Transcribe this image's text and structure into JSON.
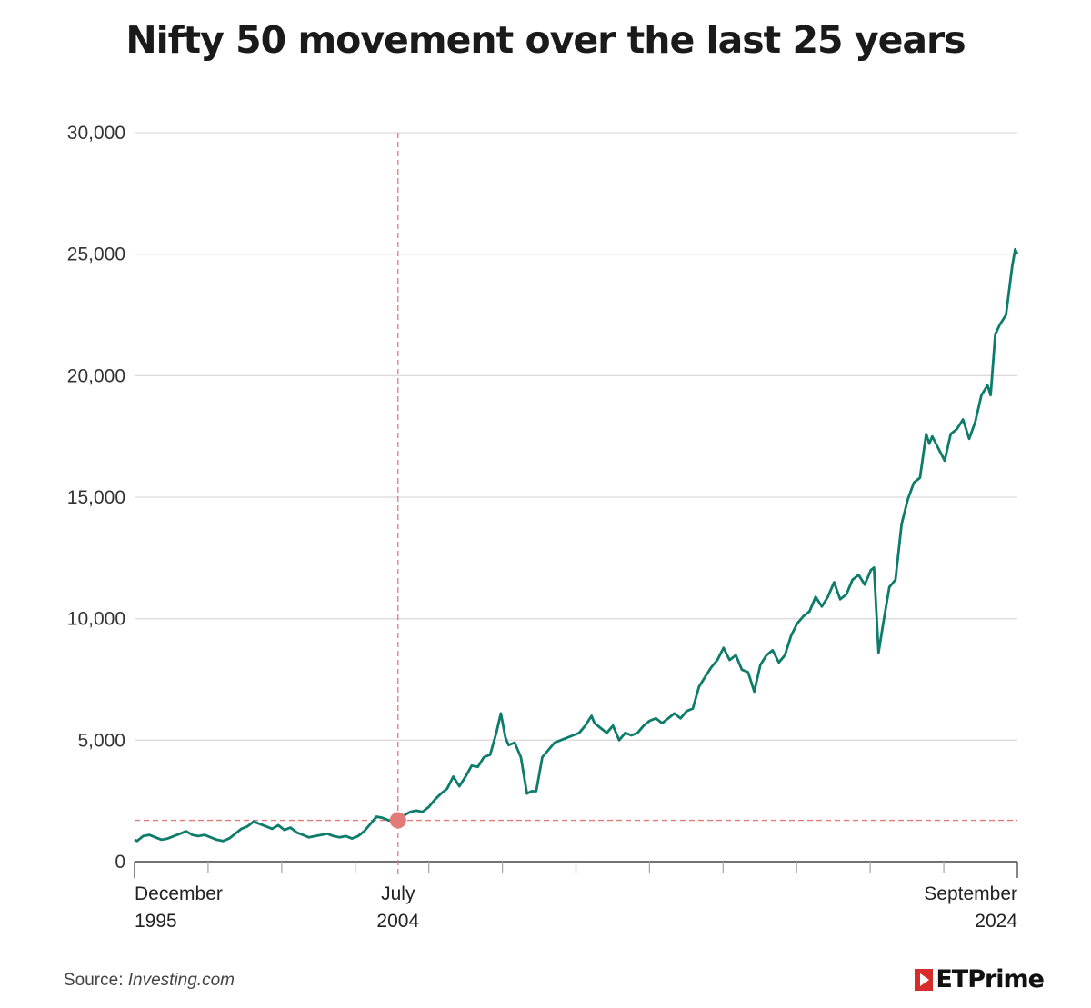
{
  "chart_data": {
    "type": "line",
    "title": "Nifty 50 movement over the last 25 years",
    "xlabel": "",
    "ylabel": "",
    "y_ticks": [
      "0",
      "5,000",
      "10,000",
      "15,000",
      "20,000",
      "25,000",
      "30,000"
    ],
    "ylim": [
      0,
      30000
    ],
    "xlim": [
      1995.92,
      2024.67
    ],
    "x_tick_labels": [
      {
        "x": 1995.92,
        "line1": "December",
        "line2": "1995"
      },
      {
        "x": 2004.5,
        "line1": "July",
        "line2": "2004"
      },
      {
        "x": 2024.67,
        "line1": "September",
        "line2": "2024"
      }
    ],
    "grid": true,
    "line_color": "#0e7c6b",
    "annotation_color": "#e27a77",
    "marker": {
      "x": 2004.5,
      "y": 1700
    },
    "series": [
      {
        "x": [
          1995.92,
          1996.0,
          1996.2,
          1996.4,
          1996.6,
          1996.8,
          1997.0,
          1997.2,
          1997.4,
          1997.6,
          1997.8,
          1998.0,
          1998.2,
          1998.4,
          1998.6,
          1998.8,
          1999.0,
          1999.2,
          1999.4,
          1999.6,
          1999.8,
          2000.0,
          2000.2,
          2000.4,
          2000.6,
          2000.8,
          2001.0,
          2001.2,
          2001.4,
          2001.6,
          2001.8,
          2002.0,
          2002.2,
          2002.4,
          2002.6,
          2002.8,
          2003.0,
          2003.2,
          2003.4,
          2003.6,
          2003.8,
          2004.0,
          2004.2,
          2004.5,
          2004.7,
          2004.9,
          2005.1,
          2005.3,
          2005.5,
          2005.7,
          2005.9,
          2006.1,
          2006.3,
          2006.5,
          2006.7,
          2006.9,
          2007.1,
          2007.3,
          2007.5,
          2007.7,
          2007.85,
          2008.0,
          2008.1,
          2008.3,
          2008.5,
          2008.7,
          2008.85,
          2009.0,
          2009.2,
          2009.4,
          2009.6,
          2009.8,
          2010.0,
          2010.2,
          2010.4,
          2010.6,
          2010.8,
          2010.9,
          2011.1,
          2011.3,
          2011.5,
          2011.7,
          2011.9,
          2012.1,
          2012.3,
          2012.5,
          2012.7,
          2012.9,
          2013.1,
          2013.3,
          2013.5,
          2013.7,
          2013.9,
          2014.1,
          2014.3,
          2014.5,
          2014.7,
          2014.9,
          2015.1,
          2015.3,
          2015.5,
          2015.7,
          2015.9,
          2016.1,
          2016.3,
          2016.5,
          2016.7,
          2016.9,
          2017.1,
          2017.3,
          2017.5,
          2017.7,
          2017.9,
          2018.1,
          2018.3,
          2018.5,
          2018.7,
          2018.9,
          2019.1,
          2019.3,
          2019.5,
          2019.7,
          2019.9,
          2020.0,
          2020.15,
          2020.3,
          2020.5,
          2020.7,
          2020.9,
          2021.1,
          2021.3,
          2021.5,
          2021.7,
          2021.8,
          2021.9,
          2022.1,
          2022.3,
          2022.5,
          2022.7,
          2022.9,
          2023.1,
          2023.3,
          2023.5,
          2023.7,
          2023.8,
          2023.95,
          2024.1,
          2024.3,
          2024.5,
          2024.6,
          2024.67
        ],
        "values": [
          900,
          850,
          1050,
          1100,
          1000,
          900,
          950,
          1050,
          1150,
          1250,
          1100,
          1050,
          1100,
          1000,
          900,
          850,
          950,
          1150,
          1350,
          1450,
          1650,
          1550,
          1450,
          1350,
          1500,
          1300,
          1400,
          1200,
          1100,
          1000,
          1050,
          1100,
          1150,
          1050,
          1000,
          1050,
          950,
          1050,
          1250,
          1550,
          1850,
          1800,
          1700,
          1700,
          1900,
          2050,
          2100,
          2050,
          2250,
          2550,
          2800,
          3000,
          3500,
          3100,
          3500,
          3950,
          3900,
          4300,
          4400,
          5300,
          6100,
          5100,
          4800,
          4900,
          4300,
          2800,
          2900,
          2900,
          4300,
          4600,
          4900,
          5000,
          5100,
          5200,
          5300,
          5600,
          6000,
          5700,
          5500,
          5300,
          5600,
          5000,
          5300,
          5200,
          5300,
          5600,
          5800,
          5900,
          5700,
          5900,
          6100,
          5900,
          6200,
          6300,
          7200,
          7600,
          8000,
          8300,
          8800,
          8300,
          8500,
          7900,
          7800,
          7000,
          8100,
          8500,
          8700,
          8200,
          8500,
          9300,
          9800,
          10100,
          10300,
          10900,
          10500,
          10900,
          11500,
          10800,
          11000,
          11600,
          11800,
          11400,
          12000,
          12100,
          8600,
          9800,
          11300,
          11600,
          13900,
          14900,
          15600,
          15800,
          17600,
          17200,
          17500,
          17000,
          16500,
          17600,
          17800,
          18200,
          17400,
          18100,
          19200,
          19600,
          19200,
          21700,
          22100,
          22500,
          24500,
          25200,
          25000
        ]
      }
    ]
  },
  "footer": {
    "source_label": "Source:",
    "source_value": "Investing.com",
    "brand": "ETPrime"
  }
}
